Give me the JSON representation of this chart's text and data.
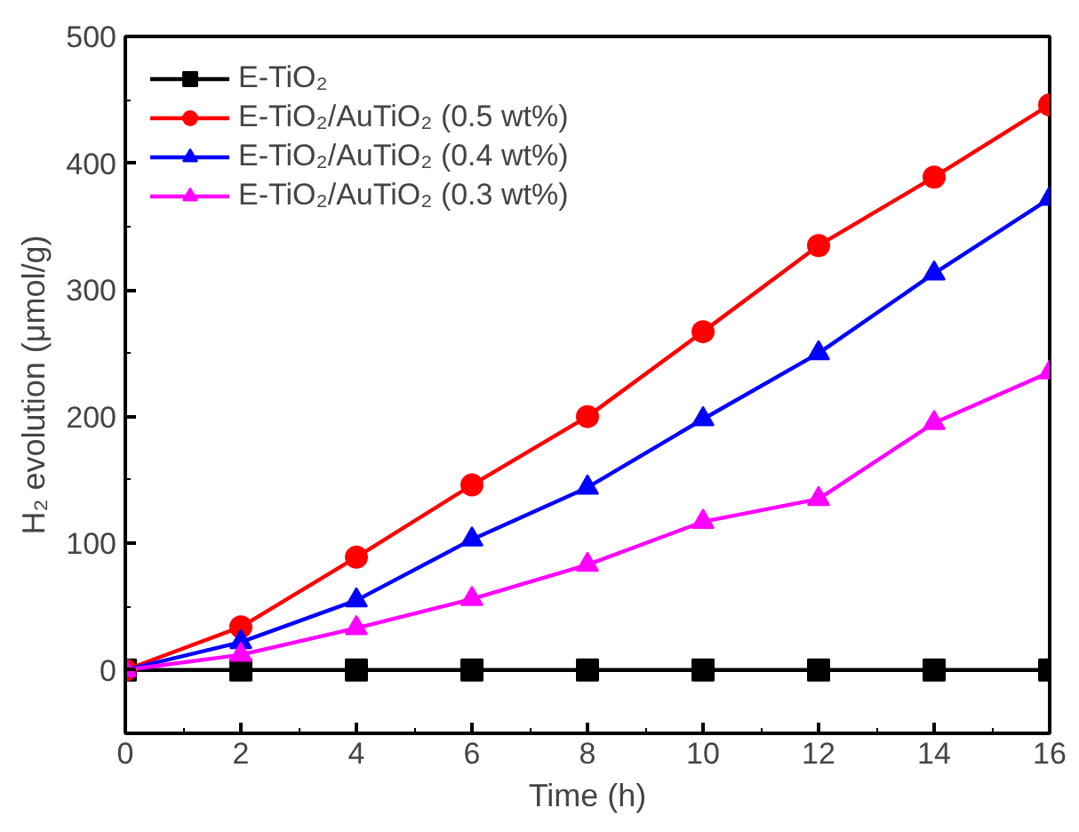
{
  "chart_data": {
    "type": "line",
    "xlabel": "Time (h)",
    "ylabel": "H₂ evolution (μmol/g)",
    "x": [
      0,
      2,
      4,
      6,
      8,
      10,
      12,
      14,
      16
    ],
    "xlim": [
      0,
      16
    ],
    "xticks": [
      0,
      2,
      4,
      6,
      8,
      10,
      12,
      14,
      16
    ],
    "ylim": [
      -50,
      500
    ],
    "yticks": [
      0,
      100,
      200,
      300,
      400,
      500
    ],
    "grid": false,
    "legend": "top left",
    "line_style": "solid",
    "series": [
      {
        "name": "E-TiO₂",
        "color": "#000000",
        "marker": "square",
        "values": [
          0,
          0,
          0,
          0,
          0,
          0,
          0,
          0,
          0
        ]
      },
      {
        "name": "E-TiO₂/AuTiO₂ (0.5 wt%)",
        "color": "#ff0000",
        "marker": "circle",
        "values": [
          0,
          34,
          89,
          146,
          200,
          267,
          335,
          389,
          446
        ]
      },
      {
        "name": "E-TiO₂/AuTiO₂ (0.4 wt%)",
        "color": "#0000ff",
        "marker": "triangle",
        "values": [
          0,
          22,
          55,
          103,
          144,
          198,
          250,
          313,
          372
        ]
      },
      {
        "name": "E-TiO₂/AuTiO₂ (0.3 wt%)",
        "color": "#ff00ff",
        "marker": "triangle",
        "values": [
          0,
          12,
          33,
          56,
          83,
          117,
          135,
          195,
          235
        ]
      }
    ]
  }
}
